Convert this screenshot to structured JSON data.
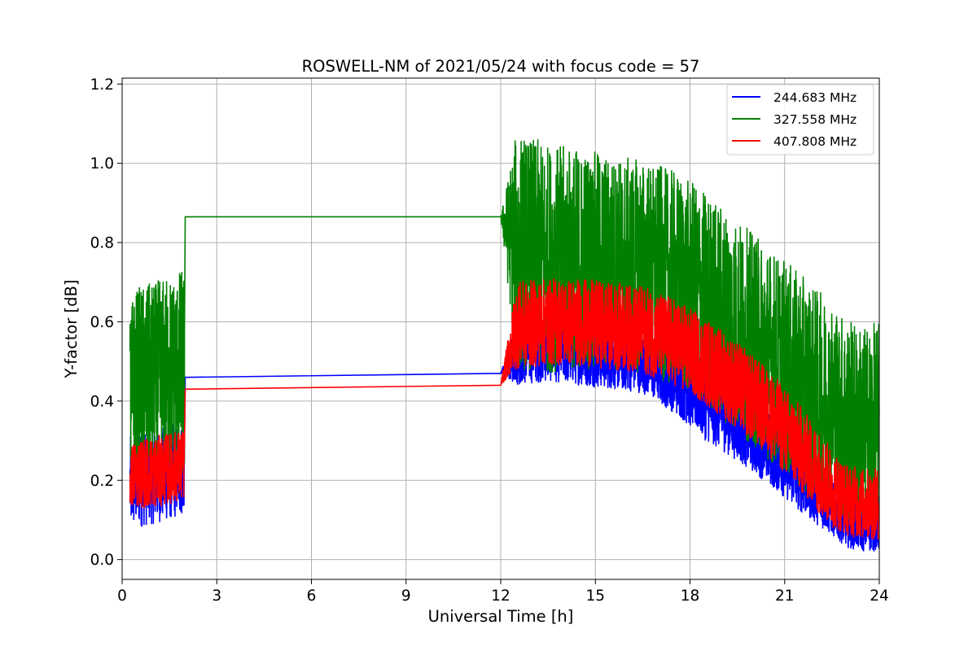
{
  "chart_data": {
    "type": "line",
    "title": "ROSWELL-NM of 2021/05/24 with focus code = 57",
    "xlabel": "Universal Time [h]",
    "ylabel": "Y-factor [dB]",
    "xlim": [
      0,
      24
    ],
    "ylim": [
      -0.05,
      1.215
    ],
    "xticks": [
      "0",
      "3",
      "6",
      "9",
      "12",
      "15",
      "18",
      "21",
      "24"
    ],
    "yticks": [
      "0.0",
      "0.2",
      "0.4",
      "0.6",
      "0.8",
      "1.0",
      "1.2"
    ],
    "grid": true,
    "legend_position": "top-right",
    "series": [
      {
        "name": "244.683 MHz",
        "color": "#0000ff",
        "x": [
          0.25,
          0.5,
          1.0,
          1.5,
          1.98,
          2.0,
          12.0,
          12.5,
          13.5,
          14.5,
          15.5,
          16.5,
          17.5,
          18.5,
          19.5,
          20.5,
          21.5,
          22.5,
          23.0,
          23.5,
          24.0
        ],
        "center": [
          0.19,
          0.2,
          0.21,
          0.22,
          0.23,
          0.46,
          0.47,
          0.52,
          0.53,
          0.52,
          0.51,
          0.5,
          0.46,
          0.4,
          0.34,
          0.28,
          0.2,
          0.13,
          0.1,
          0.09,
          0.09
        ],
        "spread": [
          0.12,
          0.12,
          0.12,
          0.12,
          0.12,
          0.0,
          0.0,
          0.08,
          0.08,
          0.08,
          0.08,
          0.08,
          0.09,
          0.1,
          0.09,
          0.09,
          0.08,
          0.07,
          0.07,
          0.07,
          0.07
        ]
      },
      {
        "name": "327.558 MHz",
        "color": "#008000",
        "x": [
          0.25,
          0.5,
          1.0,
          1.5,
          1.98,
          2.0,
          12.0,
          12.5,
          13.5,
          14.5,
          15.5,
          16.5,
          17.5,
          18.5,
          19.5,
          20.5,
          21.5,
          22.5,
          23.0,
          23.5,
          24.0
        ],
        "center": [
          0.42,
          0.45,
          0.45,
          0.46,
          0.47,
          0.865,
          0.865,
          0.78,
          0.76,
          0.76,
          0.75,
          0.74,
          0.71,
          0.66,
          0.59,
          0.52,
          0.45,
          0.38,
          0.35,
          0.33,
          0.34
        ],
        "spread": [
          0.23,
          0.24,
          0.25,
          0.26,
          0.27,
          0.0,
          0.0,
          0.3,
          0.29,
          0.28,
          0.27,
          0.27,
          0.27,
          0.27,
          0.27,
          0.27,
          0.27,
          0.27,
          0.26,
          0.26,
          0.26
        ]
      },
      {
        "name": "407.808 MHz",
        "color": "#ff0000",
        "x": [
          0.25,
          0.5,
          1.0,
          1.5,
          1.98,
          2.0,
          12.0,
          12.5,
          13.5,
          14.5,
          15.5,
          16.5,
          17.5,
          18.5,
          19.5,
          20.5,
          21.5,
          22.5,
          23.0,
          23.5,
          24.0
        ],
        "center": [
          0.21,
          0.22,
          0.22,
          0.23,
          0.24,
          0.43,
          0.44,
          0.59,
          0.6,
          0.6,
          0.59,
          0.58,
          0.55,
          0.5,
          0.44,
          0.37,
          0.28,
          0.18,
          0.15,
          0.14,
          0.14
        ],
        "spread": [
          0.08,
          0.09,
          0.09,
          0.09,
          0.09,
          0.0,
          0.0,
          0.11,
          0.11,
          0.11,
          0.11,
          0.11,
          0.11,
          0.11,
          0.11,
          0.11,
          0.11,
          0.1,
          0.09,
          0.09,
          0.09
        ]
      }
    ]
  }
}
